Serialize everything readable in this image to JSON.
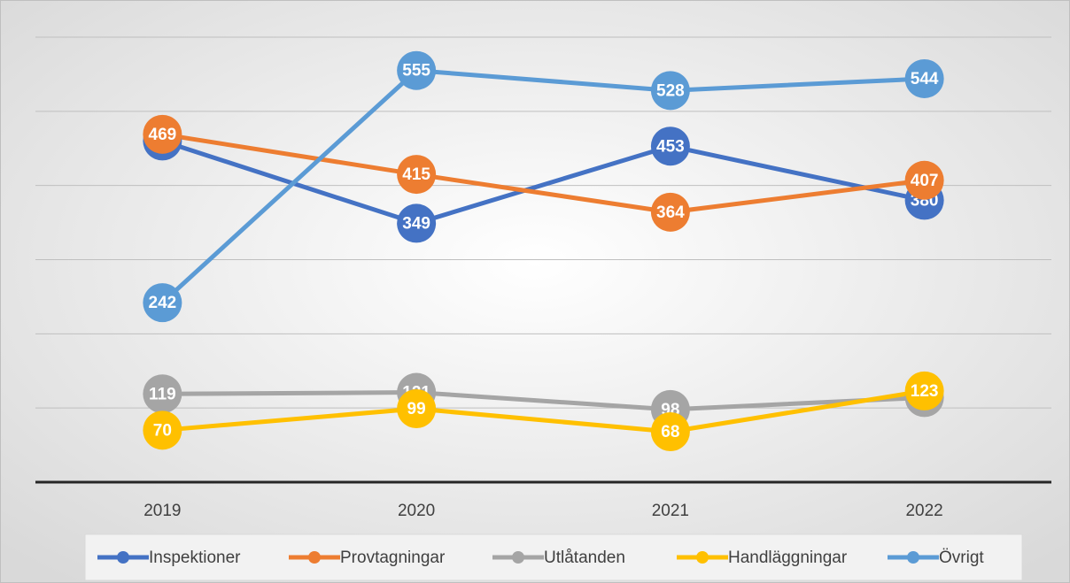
{
  "chart_data": {
    "type": "line",
    "categories": [
      "2019",
      "2020",
      "2021",
      "2022"
    ],
    "series": [
      {
        "name": "Inspektioner",
        "color": "#4472c4",
        "values": [
          460,
          349,
          453,
          380
        ]
      },
      {
        "name": "Provtagningar",
        "color": "#ed7d31",
        "values": [
          469,
          415,
          364,
          407
        ]
      },
      {
        "name": "Utlåtanden",
        "color": "#a5a5a5",
        "values": [
          119,
          121,
          98,
          114
        ]
      },
      {
        "name": "Handläggningar",
        "color": "#ffc000",
        "values": [
          70,
          99,
          68,
          123
        ]
      },
      {
        "name": "Övrigt",
        "color": "#5b9bd5",
        "values": [
          242,
          555,
          528,
          544
        ]
      }
    ],
    "ylim": [
      0,
      600
    ],
    "yticks": [
      0,
      100,
      200,
      300,
      400,
      500,
      600
    ],
    "grid": true
  }
}
